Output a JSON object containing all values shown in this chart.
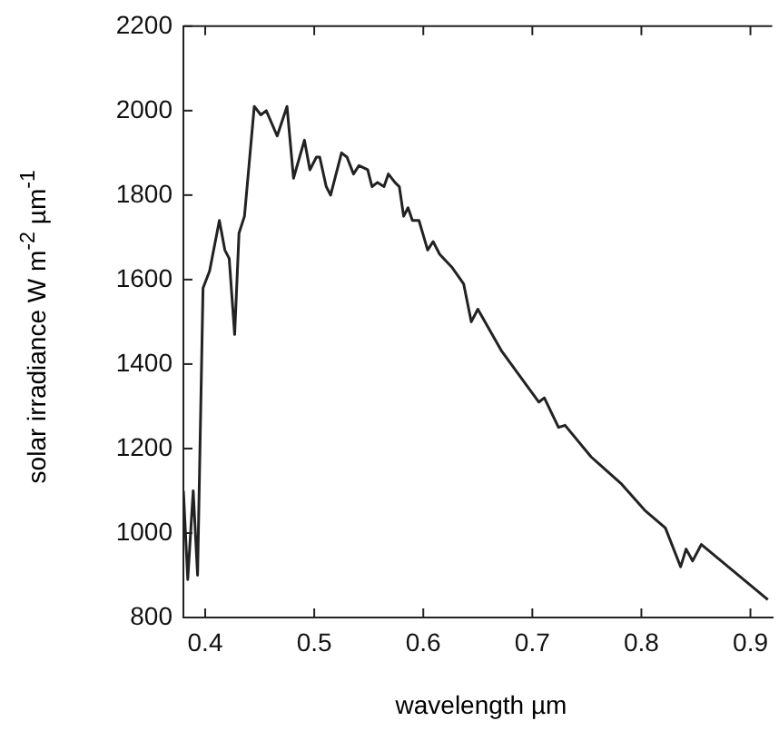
{
  "chart_data": {
    "type": "line",
    "xlabel": "wavelength µm",
    "ylabel": "solar irradiance W m$^{-2}$ µm$^{-1}$",
    "series": [
      {
        "color": "#222222",
        "x": [
          0.38,
          0.384,
          0.389,
          0.393,
          0.398,
          0.404,
          0.413,
          0.418,
          0.422,
          0.427,
          0.431,
          0.436,
          0.445,
          0.451,
          0.456,
          0.466,
          0.475,
          0.481,
          0.491,
          0.496,
          0.502,
          0.505,
          0.511,
          0.515,
          0.525,
          0.53,
          0.536,
          0.541,
          0.549,
          0.553,
          0.558,
          0.564,
          0.568,
          0.574,
          0.578,
          0.582,
          0.586,
          0.59,
          0.596,
          0.604,
          0.609,
          0.615,
          0.626,
          0.637,
          0.644,
          0.65,
          0.672,
          0.689,
          0.706,
          0.711,
          0.724,
          0.73,
          0.754,
          0.781,
          0.803,
          0.822,
          0.836,
          0.841,
          0.847,
          0.855,
          0.916
        ],
        "values": [
          1100,
          890,
          1100,
          900,
          1580,
          1620,
          1740,
          1670,
          1650,
          1470,
          1710,
          1750,
          2010,
          1990,
          2000,
          1940,
          2010,
          1840,
          1930,
          1860,
          1890,
          1890,
          1820,
          1800,
          1900,
          1890,
          1850,
          1870,
          1860,
          1820,
          1830,
          1820,
          1850,
          1830,
          1820,
          1750,
          1770,
          1740,
          1740,
          1670,
          1690,
          1660,
          1630,
          1590,
          1500,
          1530,
          1430,
          1370,
          1310,
          1320,
          1250,
          1255,
          1180,
          1118,
          1054,
          1012,
          920,
          962,
          934,
          973,
          842
        ]
      }
    ],
    "xlim": [
      0.38,
      0.92
    ],
    "xticks": [
      0.4,
      0.5,
      0.6,
      0.7,
      0.8,
      0.9
    ],
    "ylim": [
      800,
      2200
    ],
    "yticks": [
      800,
      1000,
      1200,
      1400,
      1600,
      1800,
      2000,
      2200
    ],
    "grid": false,
    "legend": false,
    "marker": "none",
    "line_style": "solid"
  }
}
